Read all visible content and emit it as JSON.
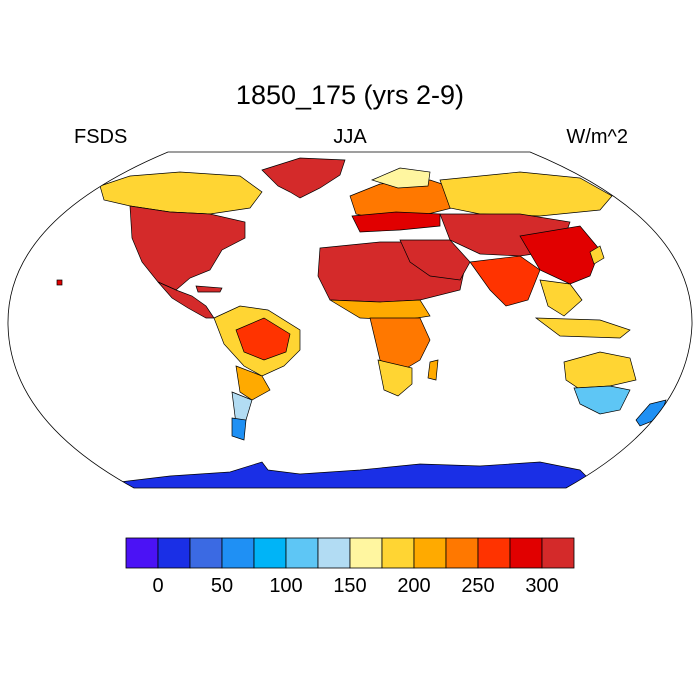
{
  "title": "1850_175 (yrs 2-9)",
  "left_label": "FSDS",
  "center_label": "JJA",
  "right_label": "W/m^2",
  "colorbar": {
    "colors": [
      "#4b12f5",
      "#1a2fe6",
      "#3b6ae3",
      "#1f90f4",
      "#00b4f7",
      "#5ec6f5",
      "#b2dcf3",
      "#fff6a0",
      "#ffd533",
      "#ffaa00",
      "#ff7800",
      "#ff3300",
      "#e10000",
      "#d42a2a"
    ],
    "tick_labels": [
      "0",
      "50",
      "100",
      "150",
      "200",
      "250",
      "300"
    ]
  },
  "map_colors": {
    "antarctica": "#1a2fe6",
    "hot": "#d42a2a",
    "red": "#e10000",
    "orange_red": "#ff3300",
    "orange": "#ff7800",
    "amber": "#ffaa00",
    "gold": "#ffd533",
    "yellow": "#fff6a0",
    "light_blue": "#b2dcf3",
    "sky": "#5ec6f5",
    "blue": "#1f90f4"
  }
}
